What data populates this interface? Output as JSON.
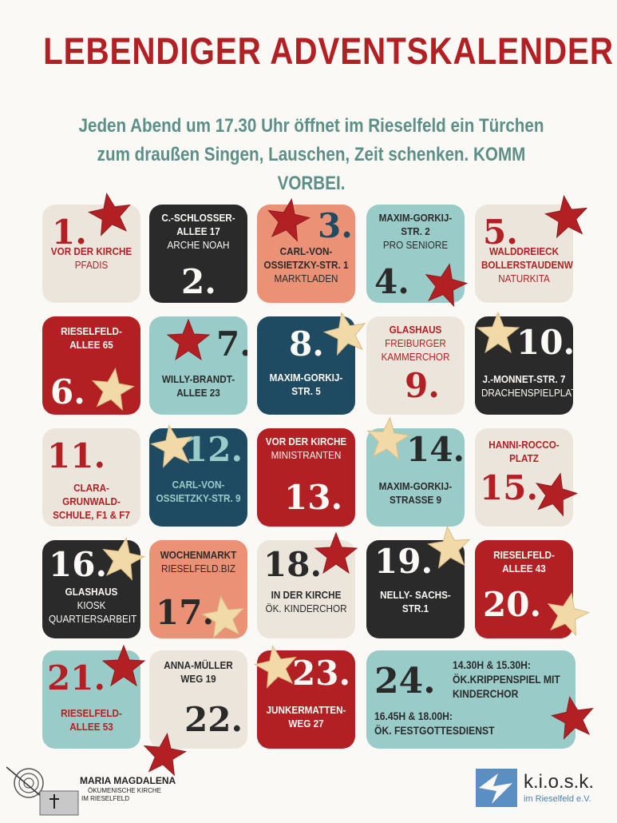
{
  "title": "LEBENDIGER ADVENTSKALENDER",
  "subtitle": {
    "line1": "Jeden Abend um 17.30 Uhr öffnet im Rieselfeld ein Türchen",
    "line2": "zum draußen Singen, Lauschen, Zeit schenken. KOMM VORBEI."
  },
  "colors": {
    "red": "#b32024",
    "teal": "#99ccc8",
    "dark": "#2b2a2b",
    "beige": "#ece5dc",
    "salmon": "#ea9176",
    "navy": "#1e4b61",
    "star_red": "#b32024",
    "star_cream": "#f2d9a8"
  },
  "days": [
    {
      "num": "1.",
      "lines": [
        "VOR DER KIRCHE",
        "PFADIS"
      ]
    },
    {
      "num": "2.",
      "lines": [
        "C.-SCHLOSSER-",
        "ALLEE 17",
        "ARCHE NOAH"
      ]
    },
    {
      "num": "3.",
      "lines": [
        "CARL-VON-",
        "OSSIETZKY-STR. 1",
        "MARKTLADEN"
      ]
    },
    {
      "num": "4.",
      "lines": [
        "MAXIM-GORKIJ-",
        "STR. 2",
        "PRO SENIORE"
      ]
    },
    {
      "num": "5.",
      "lines": [
        "WALDDREIECK",
        "BOLLERSTAUDENWEG",
        "NATURKITA"
      ]
    },
    {
      "num": "6.",
      "lines": [
        "RIESELFELD-",
        "ALLEE 65"
      ]
    },
    {
      "num": "7.",
      "lines": [
        "WILLY-BRANDT-",
        "ALLEE 23"
      ]
    },
    {
      "num": "8.",
      "lines": [
        "MAXIM-GORKIJ-",
        "STR. 5"
      ]
    },
    {
      "num": "9.",
      "lines": [
        "GLASHAUS",
        "FREIBURGER",
        "KAMMERCHOR"
      ]
    },
    {
      "num": "10.",
      "lines": [
        "J.-MONNET-STR. 7",
        "DRACHENSPIELPLATZ"
      ]
    },
    {
      "num": "11.",
      "lines": [
        "CLARA-GRUNWALD-",
        "SCHULE, F1 & F7"
      ]
    },
    {
      "num": "12.",
      "lines": [
        "CARL-VON-",
        "OSSIETZKY-STR. 9"
      ]
    },
    {
      "num": "13.",
      "lines": [
        "VOR DER KIRCHE",
        "MINISTRANTEN"
      ]
    },
    {
      "num": "14.",
      "lines": [
        "MAXIM-GORKIJ-",
        "STRASSE 9"
      ]
    },
    {
      "num": "15.",
      "lines": [
        "HANNI-ROCCO-",
        "PLATZ"
      ]
    },
    {
      "num": "16.",
      "lines": [
        "GLASHAUS",
        "KIOSK",
        "QUARTIERSARBEIT"
      ]
    },
    {
      "num": "17.",
      "lines": [
        "WOCHENMARKT",
        "RIESELFELD.BIZ"
      ]
    },
    {
      "num": "18.",
      "lines": [
        "IN DER KIRCHE",
        "ÖK. KINDERCHOR"
      ]
    },
    {
      "num": "19.",
      "lines": [
        "NELLY- SACHS-",
        "STR.1"
      ]
    },
    {
      "num": "20.",
      "lines": [
        "RIESELFELD-",
        "ALLEE 43"
      ]
    },
    {
      "num": "21.",
      "lines": [
        "RIESELFELD-",
        "ALLEE 53"
      ]
    },
    {
      "num": "22.",
      "lines": [
        "ANNA-MÜLLER",
        "WEG 19"
      ]
    },
    {
      "num": "23.",
      "lines": [
        "JUNKERMATTEN-",
        "WEG 27"
      ]
    }
  ],
  "day24": {
    "num": "24.",
    "line1": "14.30H & 15.30H:",
    "line2": "ÖK.KRIPPENSPIEL MIT",
    "line3": "KINDERCHOR",
    "line4": "16.45H & 18.00H:",
    "line5": "ÖK. FESTGOTTESDIENST"
  },
  "logos": {
    "left_title": "MARIA MAGDALENA",
    "left_sub1": "ÖKUMENISCHE KIRCHE",
    "left_sub2": "IM RIESELFELD",
    "right_title": "k.i.o.s.k.",
    "right_sub": "im Rieselfeld e.V."
  }
}
